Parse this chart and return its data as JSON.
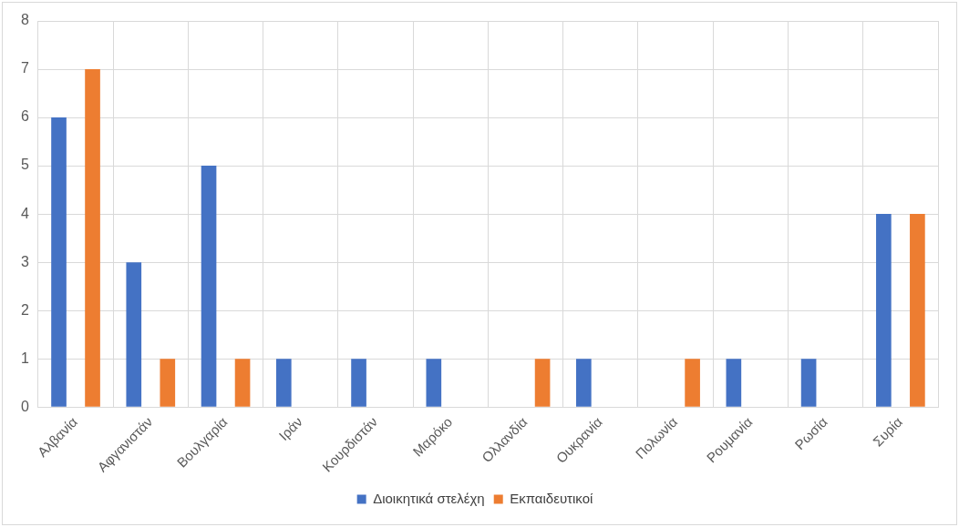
{
  "chart_data": {
    "type": "bar",
    "categories": [
      "Αλβανία",
      "Αφγανιστάν",
      "Βουλγαρία",
      "Ιράν",
      "Κουρδιστάν",
      "Μαρόκο",
      "Ολλανδία",
      "Ουκρανία",
      "Πολωνία",
      "Ρουμανία",
      "Ρωσία",
      "Συρία"
    ],
    "series": [
      {
        "name": "Διοικητικά στελέχη",
        "color": "#4472c4",
        "values": [
          6,
          3,
          5,
          1,
          1,
          1,
          0,
          1,
          0,
          1,
          1,
          4
        ]
      },
      {
        "name": "Εκπαιδευτικοί",
        "color": "#ed7d31",
        "values": [
          7,
          1,
          1,
          0,
          0,
          0,
          1,
          0,
          1,
          0,
          0,
          4
        ]
      }
    ],
    "ylim": [
      0,
      8
    ],
    "yticks": [
      0,
      1,
      2,
      3,
      4,
      5,
      6,
      7,
      8
    ],
    "grid": true,
    "legend": "bottom"
  }
}
